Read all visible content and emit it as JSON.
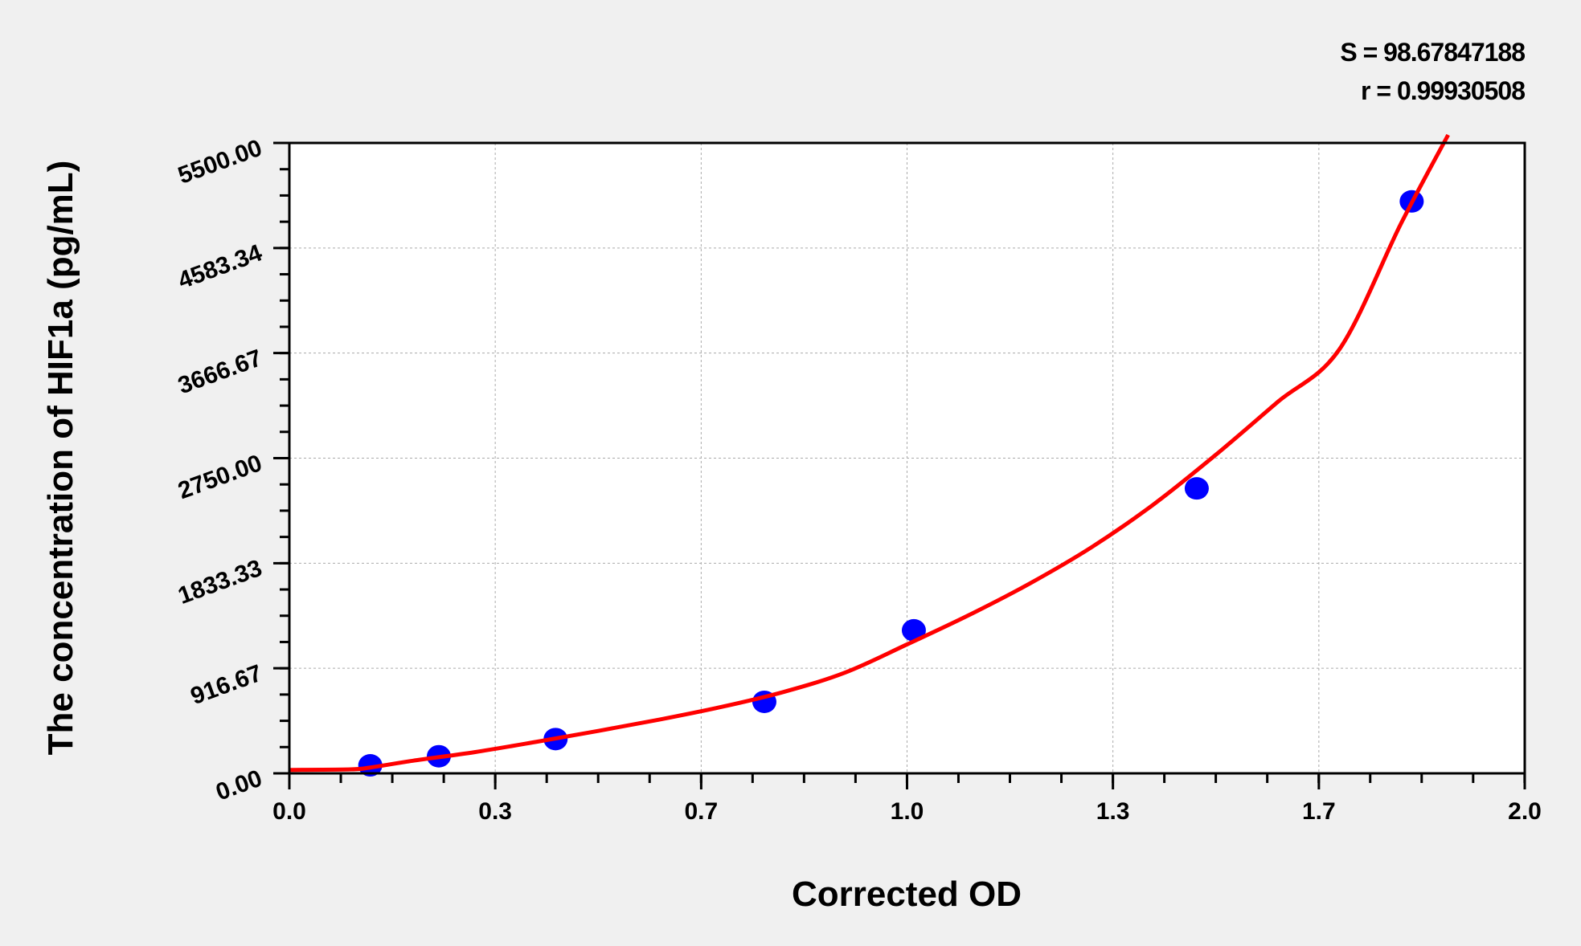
{
  "chart_data": {
    "type": "scatter",
    "title": "",
    "xlabel": "Corrected OD",
    "ylabel": "The concentration of HIF1a (pg/mL)",
    "xlim": [
      0,
      2.0
    ],
    "ylim": [
      0,
      5500
    ],
    "x_ticks": [
      0,
      0.3333,
      0.6667,
      1.0,
      1.3333,
      1.6667,
      2.0
    ],
    "x_tick_labels": [
      "0.0",
      "0.3",
      "0.7",
      "1.0",
      "1.3",
      "1.7",
      "2.0"
    ],
    "y_ticks": [
      0,
      916.67,
      1833.33,
      2750,
      3666.67,
      4583.34,
      5500
    ],
    "y_tick_labels": [
      "0.00",
      "916.67",
      "1833.33",
      "2750.00",
      "3666.67",
      "4583.34",
      "5500.00"
    ],
    "grid": true,
    "annotations": [
      "S = 98.67847188",
      "r = 0.99930508"
    ],
    "series": [
      {
        "type": "scatter",
        "color": "#0000ff",
        "x": [
          0.131,
          0.242,
          0.431,
          0.769,
          1.011,
          1.469,
          1.817
        ],
        "y": [
          70,
          149,
          299,
          624,
          1248,
          2486,
          4990
        ]
      },
      {
        "type": "line",
        "color": "#ff0000",
        "x": [
          0,
          0.1,
          0.13,
          0.2,
          0.3,
          0.4,
          0.5,
          0.6,
          0.7,
          0.8,
          0.9,
          1.0,
          1.1,
          1.2,
          1.3,
          1.4,
          1.5,
          1.6,
          1.7,
          1.8,
          1.876
        ],
        "y": [
          30,
          35,
          50,
          110,
          185,
          275,
          370,
          470,
          580,
          710,
          880,
          1125,
          1380,
          1660,
          1977,
          2350,
          2780,
          3240,
          3700,
          4800,
          5570
        ]
      }
    ]
  }
}
